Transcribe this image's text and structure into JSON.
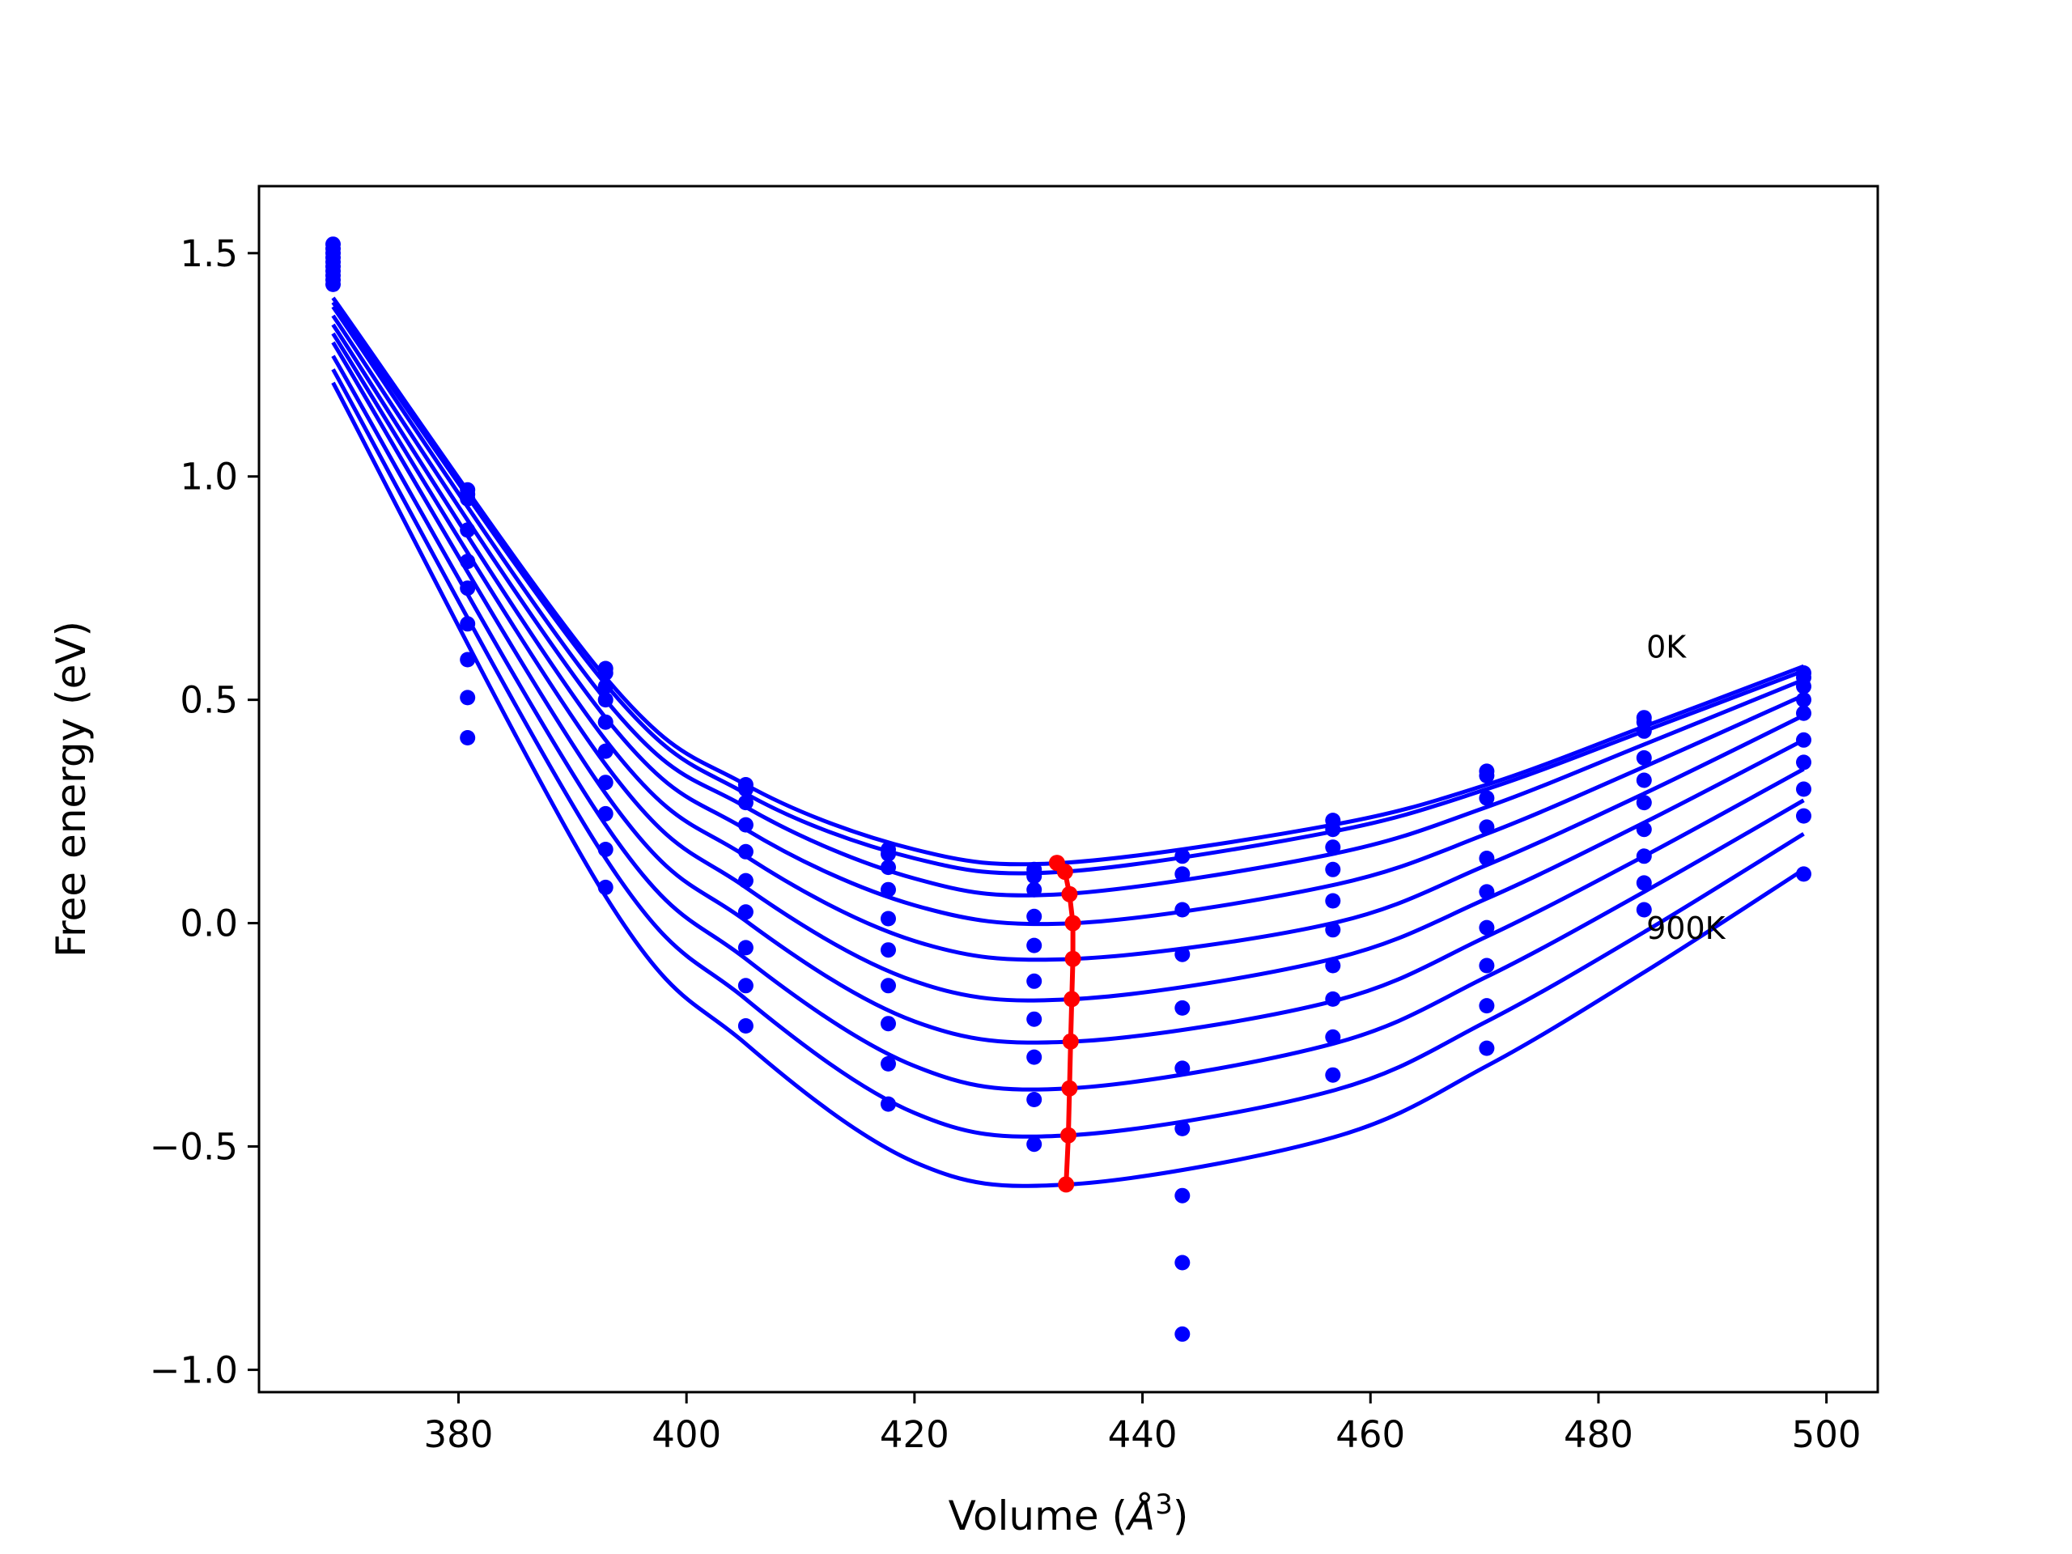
{
  "chart_data": {
    "type": "line",
    "xlabel": "Volume (",
    "xlabel_unit": "Å",
    "xlabel_sup": "3",
    "xlabel_close": ")",
    "ylabel": "Free energy (eV)",
    "xlim": [
      362.5,
      504.5
    ],
    "ylim": [
      -1.05,
      1.65
    ],
    "xticks": [
      380,
      400,
      420,
      440,
      460,
      480,
      500
    ],
    "yticks": [
      -1.0,
      -0.5,
      0.0,
      0.5,
      1.0,
      1.5
    ],
    "xtick_labels": [
      "380",
      "400",
      "420",
      "440",
      "460",
      "480",
      "500"
    ],
    "ytick_labels": [
      "−1.0",
      "−0.5",
      "0.0",
      "0.5",
      "1.0",
      "1.5"
    ],
    "annotations": [
      {
        "text": "0K",
        "x": 484.2,
        "y": 0.62
      },
      {
        "text": "900K",
        "x": 484.2,
        "y": -0.01
      }
    ],
    "volumes": [
      369.0,
      380.8,
      392.9,
      405.2,
      417.7,
      430.5,
      443.5,
      456.7,
      470.2,
      484.0,
      498.0
    ],
    "curve_color": "#0000ff",
    "min_color": "#ff0000",
    "series": [
      {
        "label": "0K",
        "values": [
          1.52,
          0.97,
          0.57,
          0.31,
          0.165,
          0.12,
          0.15,
          0.23,
          0.34,
          0.46,
          0.56
        ]
      },
      {
        "values": [
          1.51,
          0.96,
          0.56,
          0.3,
          0.155,
          0.105,
          0.11,
          0.21,
          0.33,
          0.45,
          0.55
        ]
      },
      {
        "values": [
          1.5,
          0.95,
          0.53,
          0.27,
          0.125,
          0.075,
          0.03,
          0.17,
          0.28,
          0.43,
          0.53
        ]
      },
      {
        "values": [
          1.49,
          0.88,
          0.5,
          0.22,
          0.075,
          0.015,
          -0.07,
          0.12,
          0.215,
          0.37,
          0.5
        ]
      },
      {
        "values": [
          1.48,
          0.81,
          0.45,
          0.16,
          0.01,
          -0.05,
          -0.19,
          0.05,
          0.145,
          0.32,
          0.47
        ]
      },
      {
        "values": [
          1.47,
          0.75,
          0.385,
          0.095,
          -0.06,
          -0.13,
          -0.325,
          -0.015,
          0.07,
          0.27,
          0.41
        ]
      },
      {
        "values": [
          1.46,
          0.67,
          0.315,
          0.025,
          -0.14,
          -0.215,
          -0.46,
          -0.095,
          -0.01,
          0.21,
          0.36
        ]
      },
      {
        "values": [
          1.45,
          0.59,
          0.245,
          -0.055,
          -0.225,
          -0.3,
          -0.61,
          -0.17,
          -0.095,
          0.15,
          0.3
        ]
      },
      {
        "values": [
          1.44,
          0.505,
          0.165,
          -0.14,
          -0.315,
          -0.395,
          -0.76,
          -0.255,
          -0.185,
          0.09,
          0.24
        ]
      },
      {
        "label": "900K",
        "values": [
          1.43,
          0.415,
          0.08,
          -0.23,
          -0.405,
          -0.495,
          -0.92,
          -0.34,
          -0.28,
          0.03,
          0.11
        ]
      }
    ],
    "fits": [
      {
        "anchors": [
          [
            369.0,
            1.4
          ],
          [
            392.9,
            0.55
          ],
          [
            405.2,
            0.31
          ],
          [
            420.0,
            0.165
          ],
          [
            433.0,
            0.135
          ],
          [
            456.7,
            0.22
          ],
          [
            470.2,
            0.31
          ],
          [
            484.0,
            0.44
          ],
          [
            498.0,
            0.575
          ]
        ]
      },
      {
        "anchors": [
          [
            369.0,
            1.39
          ],
          [
            392.9,
            0.535
          ],
          [
            405.2,
            0.29
          ],
          [
            420.0,
            0.145
          ],
          [
            433.0,
            0.115
          ],
          [
            456.7,
            0.205
          ],
          [
            470.2,
            0.3
          ],
          [
            484.0,
            0.43
          ],
          [
            498.0,
            0.565
          ]
        ]
      },
      {
        "anchors": [
          [
            369.0,
            1.38
          ],
          [
            392.9,
            0.5
          ],
          [
            405.2,
            0.26
          ],
          [
            420.0,
            0.1
          ],
          [
            433.0,
            0.065
          ],
          [
            456.7,
            0.155
          ],
          [
            470.2,
            0.26
          ],
          [
            484.0,
            0.4
          ],
          [
            498.0,
            0.545
          ]
        ]
      },
      {
        "anchors": [
          [
            369.0,
            1.36
          ],
          [
            392.9,
            0.46
          ],
          [
            405.2,
            0.21
          ],
          [
            420.0,
            0.04
          ],
          [
            434.0,
            0.0
          ],
          [
            456.7,
            0.085
          ],
          [
            470.2,
            0.2
          ],
          [
            484.0,
            0.35
          ],
          [
            498.0,
            0.51
          ]
        ]
      },
      {
        "anchors": [
          [
            369.0,
            1.34
          ],
          [
            392.9,
            0.41
          ],
          [
            405.2,
            0.15
          ],
          [
            420.0,
            -0.04
          ],
          [
            434.0,
            -0.08
          ],
          [
            456.7,
            0.0
          ],
          [
            470.2,
            0.13
          ],
          [
            484.0,
            0.29
          ],
          [
            498.0,
            0.465
          ]
        ]
      },
      {
        "anchors": [
          [
            369.0,
            1.32
          ],
          [
            392.9,
            0.355
          ],
          [
            405.2,
            0.08
          ],
          [
            420.0,
            -0.13
          ],
          [
            434.0,
            -0.17
          ],
          [
            456.7,
            -0.08
          ],
          [
            470.2,
            0.055
          ],
          [
            484.0,
            0.225
          ],
          [
            498.0,
            0.41
          ]
        ]
      },
      {
        "anchors": [
          [
            369.0,
            1.3
          ],
          [
            392.9,
            0.29
          ],
          [
            405.2,
            0.005
          ],
          [
            420.0,
            -0.22
          ],
          [
            434.0,
            -0.265
          ],
          [
            456.7,
            -0.175
          ],
          [
            470.2,
            -0.03
          ],
          [
            484.0,
            0.15
          ],
          [
            498.0,
            0.345
          ]
        ]
      },
      {
        "anchors": [
          [
            369.0,
            1.27
          ],
          [
            392.9,
            0.22
          ],
          [
            405.2,
            -0.08
          ],
          [
            420.0,
            -0.32
          ],
          [
            433.5,
            -0.37
          ],
          [
            456.7,
            -0.27
          ],
          [
            470.2,
            -0.12
          ],
          [
            484.0,
            0.07
          ],
          [
            498.0,
            0.275
          ]
        ]
      },
      {
        "anchors": [
          [
            369.0,
            1.24
          ],
          [
            392.9,
            0.145
          ],
          [
            405.2,
            -0.17
          ],
          [
            420.0,
            -0.425
          ],
          [
            433.5,
            -0.475
          ],
          [
            456.7,
            -0.375
          ],
          [
            470.2,
            -0.22
          ],
          [
            484.0,
            -0.02
          ],
          [
            498.0,
            0.2
          ]
        ]
      },
      {
        "anchors": [
          [
            369.0,
            1.21
          ],
          [
            392.9,
            0.06
          ],
          [
            405.2,
            -0.27
          ],
          [
            420.0,
            -0.535
          ],
          [
            433.5,
            -0.585
          ],
          [
            456.7,
            -0.48
          ],
          [
            470.2,
            -0.32
          ],
          [
            484.0,
            -0.11
          ],
          [
            498.0,
            0.12
          ]
        ]
      }
    ],
    "minima": [
      [
        432.5,
        0.135
      ],
      [
        433.2,
        0.115
      ],
      [
        433.6,
        0.065
      ],
      [
        433.9,
        0.0
      ],
      [
        433.9,
        -0.08
      ],
      [
        433.8,
        -0.17
      ],
      [
        433.7,
        -0.265
      ],
      [
        433.6,
        -0.37
      ],
      [
        433.5,
        -0.475
      ],
      [
        433.3,
        -0.585
      ]
    ]
  }
}
